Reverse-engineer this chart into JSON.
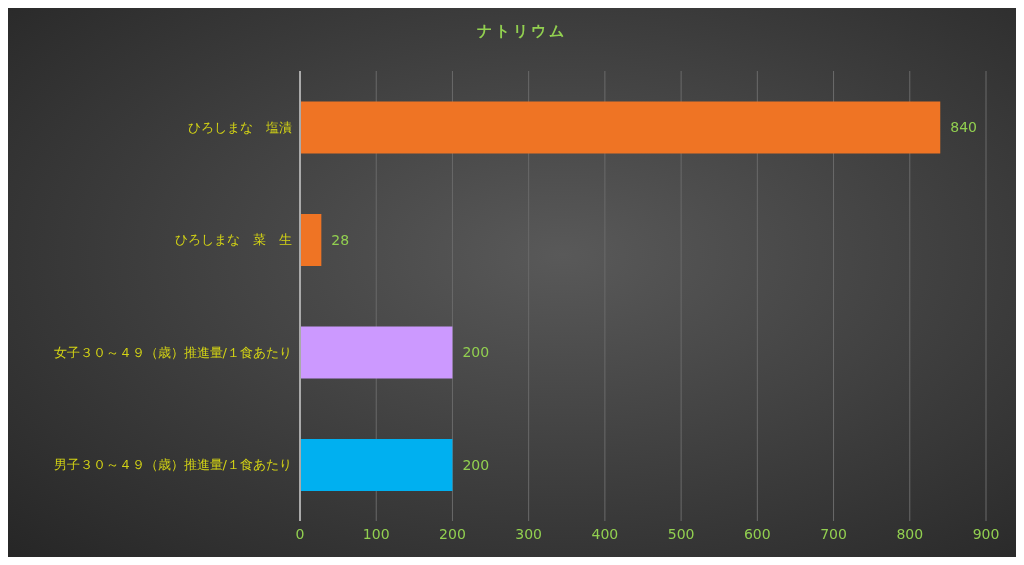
{
  "chart_data": {
    "type": "bar",
    "orientation": "horizontal",
    "title": "ナトリウム",
    "categories": [
      "ひろしまな　塩漬",
      "ひろしまな　菜　生",
      "女子３０～４９（歳）推進量/１食あたり",
      "男子３０～４９（歳）推進量/１食あたり"
    ],
    "values": [
      840,
      28,
      200,
      200
    ],
    "colors": [
      "#ef7424",
      "#ef7424",
      "#cc99ff",
      "#00b0f0"
    ],
    "xlim": [
      0,
      900
    ],
    "xticks": [
      0,
      100,
      200,
      300,
      400,
      500,
      600,
      700,
      800,
      900
    ],
    "grid": "x",
    "data_labels": true
  }
}
